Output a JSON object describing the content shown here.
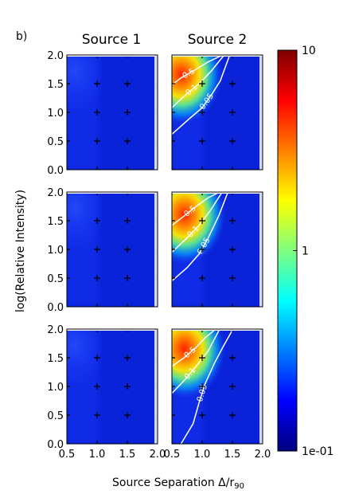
{
  "chart_data": {
    "type": "heatmap",
    "panel_label": "b)",
    "column_titles": [
      "Source 1",
      "Source 2"
    ],
    "xlabel_text": "Source Separation Δ/r",
    "xlabel_subscript": "90",
    "ylabel": "log(Relative Intensity)",
    "xlim": [
      0.5,
      2.0
    ],
    "ylim": [
      0.0,
      2.0
    ],
    "x_ticks": [
      "0.5",
      "1.0",
      "1.5",
      "2.0"
    ],
    "y_ticks": [
      "0.0",
      "0.5",
      "1.0",
      "1.5",
      "2.0"
    ],
    "grid_points_x": [
      0.5,
      1.0,
      1.5,
      2.0
    ],
    "grid_points_y": [
      0.0,
      0.5,
      1.0,
      1.5,
      2.0
    ],
    "colorbar": {
      "scale": "log",
      "min": 0.1,
      "max": 10,
      "tick_labels": [
        "10",
        "1",
        "1e-01"
      ],
      "tick_values": [
        10,
        1,
        0.1
      ],
      "colormap": [
        "#00007f",
        "#0000ff",
        "#007fff",
        "#00ffff",
        "#7fff7f",
        "#ffff00",
        "#ff7f00",
        "#ff0000",
        "#7f0000"
      ]
    },
    "contour_labels": [
      "0.5",
      "0.1",
      "0.05"
    ],
    "panels": [
      {
        "row": 1,
        "column": "Source 1",
        "peak": {
          "x": 0.5,
          "y": 2.0,
          "value": 0.12
        },
        "contours": []
      },
      {
        "row": 1,
        "column": "Source 2",
        "peak": {
          "x": 0.55,
          "y": 1.85,
          "value": 5.0
        },
        "contours": [
          {
            "level": "0.5",
            "points": [
              [
                0.5,
                1.48
              ],
              [
                0.65,
                1.6
              ],
              [
                0.9,
                1.75
              ],
              [
                1.1,
                1.88
              ],
              [
                1.3,
                1.98
              ]
            ]
          },
          {
            "level": "0.1",
            "points": [
              [
                0.5,
                1.08
              ],
              [
                0.7,
                1.28
              ],
              [
                0.95,
                1.5
              ],
              [
                1.15,
                1.72
              ],
              [
                1.35,
                1.98
              ]
            ]
          },
          {
            "level": "0.05",
            "points": [
              [
                0.5,
                0.62
              ],
              [
                0.8,
                0.9
              ],
              [
                1.0,
                1.08
              ],
              [
                1.15,
                1.3
              ],
              [
                1.3,
                1.55
              ],
              [
                1.45,
                1.98
              ]
            ]
          }
        ]
      },
      {
        "row": 2,
        "column": "Source 1",
        "peak": {
          "x": 0.5,
          "y": 2.0,
          "value": 0.12
        },
        "contours": []
      },
      {
        "row": 2,
        "column": "Source 2",
        "peak": {
          "x": 0.6,
          "y": 1.8,
          "value": 3.0
        },
        "contours": [
          {
            "level": "0.5",
            "points": [
              [
                0.5,
                1.42
              ],
              [
                0.7,
                1.58
              ],
              [
                0.9,
                1.75
              ],
              [
                1.1,
                1.9
              ],
              [
                1.25,
                1.98
              ]
            ]
          },
          {
            "level": "0.1",
            "points": [
              [
                0.5,
                0.95
              ],
              [
                0.75,
                1.2
              ],
              [
                0.95,
                1.42
              ],
              [
                1.15,
                1.7
              ],
              [
                1.32,
                1.98
              ]
            ]
          },
          {
            "level": "0.05",
            "points": [
              [
                0.5,
                0.45
              ],
              [
                0.75,
                0.68
              ],
              [
                0.95,
                0.92
              ],
              [
                1.1,
                1.2
              ],
              [
                1.28,
                1.6
              ],
              [
                1.42,
                1.98
              ]
            ]
          }
        ]
      },
      {
        "row": 3,
        "column": "Source 1",
        "peak": {
          "x": 0.5,
          "y": 2.0,
          "value": 0.12
        },
        "contours": []
      },
      {
        "row": 3,
        "column": "Source 2",
        "peak": {
          "x": 0.6,
          "y": 1.85,
          "value": 5.0
        },
        "contours": [
          {
            "level": "0.5",
            "points": [
              [
                0.5,
                1.35
              ],
              [
                0.7,
                1.5
              ],
              [
                0.9,
                1.68
              ],
              [
                1.05,
                1.85
              ],
              [
                1.2,
                1.98
              ]
            ]
          },
          {
            "level": "0.1",
            "points": [
              [
                0.5,
                0.88
              ],
              [
                0.7,
                1.1
              ],
              [
                0.9,
                1.35
              ],
              [
                1.1,
                1.62
              ],
              [
                1.28,
                1.98
              ]
            ]
          },
          {
            "level": "0.05",
            "points": [
              [
                0.65,
                0.0
              ],
              [
                0.85,
                0.35
              ],
              [
                0.95,
                0.72
              ],
              [
                1.05,
                1.05
              ],
              [
                1.2,
                1.4
              ],
              [
                1.35,
                1.7
              ],
              [
                1.5,
                1.98
              ]
            ]
          }
        ]
      }
    ]
  }
}
